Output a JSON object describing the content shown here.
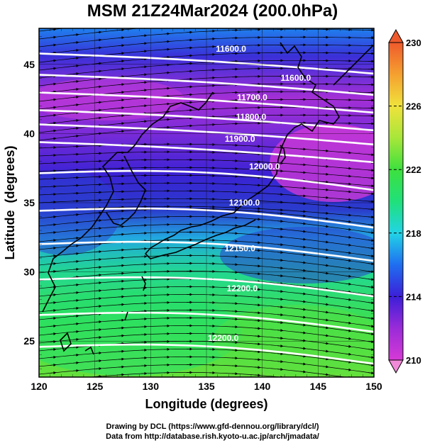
{
  "title": "MSM 21Z24Mar2024 (200.0hPa)",
  "x_axis": {
    "label": "Longitude (degrees)",
    "range": [
      120,
      150
    ],
    "ticks": [
      "120",
      "125",
      "130",
      "135",
      "140",
      "145",
      "150"
    ]
  },
  "y_axis": {
    "label": "Latitude  (degrees)",
    "range": [
      22.4,
      47.6
    ],
    "ticks": [
      "25",
      "30",
      "35",
      "40",
      "45"
    ]
  },
  "colorbar": {
    "range": [
      210,
      230
    ],
    "ticks": [
      "210",
      "214",
      "218",
      "222",
      "226",
      "230"
    ],
    "colors": [
      "#d63ad6",
      "#9a2bd8",
      "#3c1fd8",
      "#1f6ef0",
      "#22d4e6",
      "#20e07a",
      "#3ee03e",
      "#a8e63a",
      "#f0e23c",
      "#f5a030",
      "#ef5a2c"
    ]
  },
  "contour_labels": [
    {
      "text": "11600.0",
      "lon": 137.2,
      "lat": 45.9
    },
    {
      "text": "11600.0",
      "lon": 143.0,
      "lat": 43.8
    },
    {
      "text": "11700.0",
      "lon": 139.1,
      "lat": 42.4
    },
    {
      "text": "11800.0",
      "lon": 139.0,
      "lat": 41.0
    },
    {
      "text": "11900.0",
      "lon": 138.0,
      "lat": 39.4
    },
    {
      "text": "12000.0",
      "lon": 140.2,
      "lat": 37.4
    },
    {
      "text": "12100.0",
      "lon": 138.4,
      "lat": 34.8
    },
    {
      "text": "12150.0",
      "lon": 138.0,
      "lat": 31.5
    },
    {
      "text": "12200.0",
      "lon": 138.2,
      "lat": 28.6
    },
    {
      "text": "12200.0",
      "lon": 136.5,
      "lat": 25.0
    }
  ],
  "credits": {
    "line1": "Drawing by DCL (https://www.gfd-dennou.org/library/dcl/)",
    "line2": "Data from http://database.rish.kyoto-u.ac.jp/arch/jmadata/"
  }
}
